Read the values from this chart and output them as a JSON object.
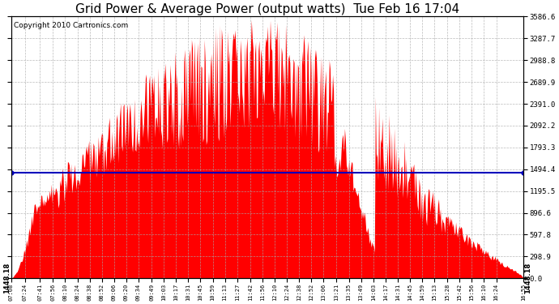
{
  "title": "Grid Power & Average Power (output watts)  Tue Feb 16 17:04",
  "copyright": "Copyright 2010 Cartronics.com",
  "average_value": 1448.18,
  "y_max": 3586.6,
  "y_ticks": [
    0.0,
    298.9,
    597.8,
    896.6,
    1195.5,
    1494.4,
    1793.3,
    2092.2,
    2391.0,
    2689.9,
    2988.8,
    3287.7,
    3586.6
  ],
  "bar_color": "#FF0000",
  "avg_line_color": "#0000BB",
  "background_color": "#FFFFFF",
  "grid_color": "#AAAAAA",
  "title_fontsize": 11,
  "copyright_fontsize": 6.5,
  "avg_label_fontsize": 6,
  "x_tick_labels": [
    "07:08",
    "07:24",
    "07:41",
    "07:56",
    "08:10",
    "08:24",
    "08:38",
    "08:52",
    "09:06",
    "09:20",
    "09:34",
    "09:49",
    "10:03",
    "10:17",
    "10:31",
    "10:45",
    "10:59",
    "11:13",
    "11:27",
    "11:42",
    "11:56",
    "12:10",
    "12:24",
    "12:38",
    "12:52",
    "13:06",
    "13:21",
    "13:35",
    "13:49",
    "14:03",
    "14:17",
    "14:31",
    "14:45",
    "14:59",
    "15:13",
    "15:28",
    "15:42",
    "15:56",
    "16:10",
    "16:24",
    "16:55"
  ]
}
